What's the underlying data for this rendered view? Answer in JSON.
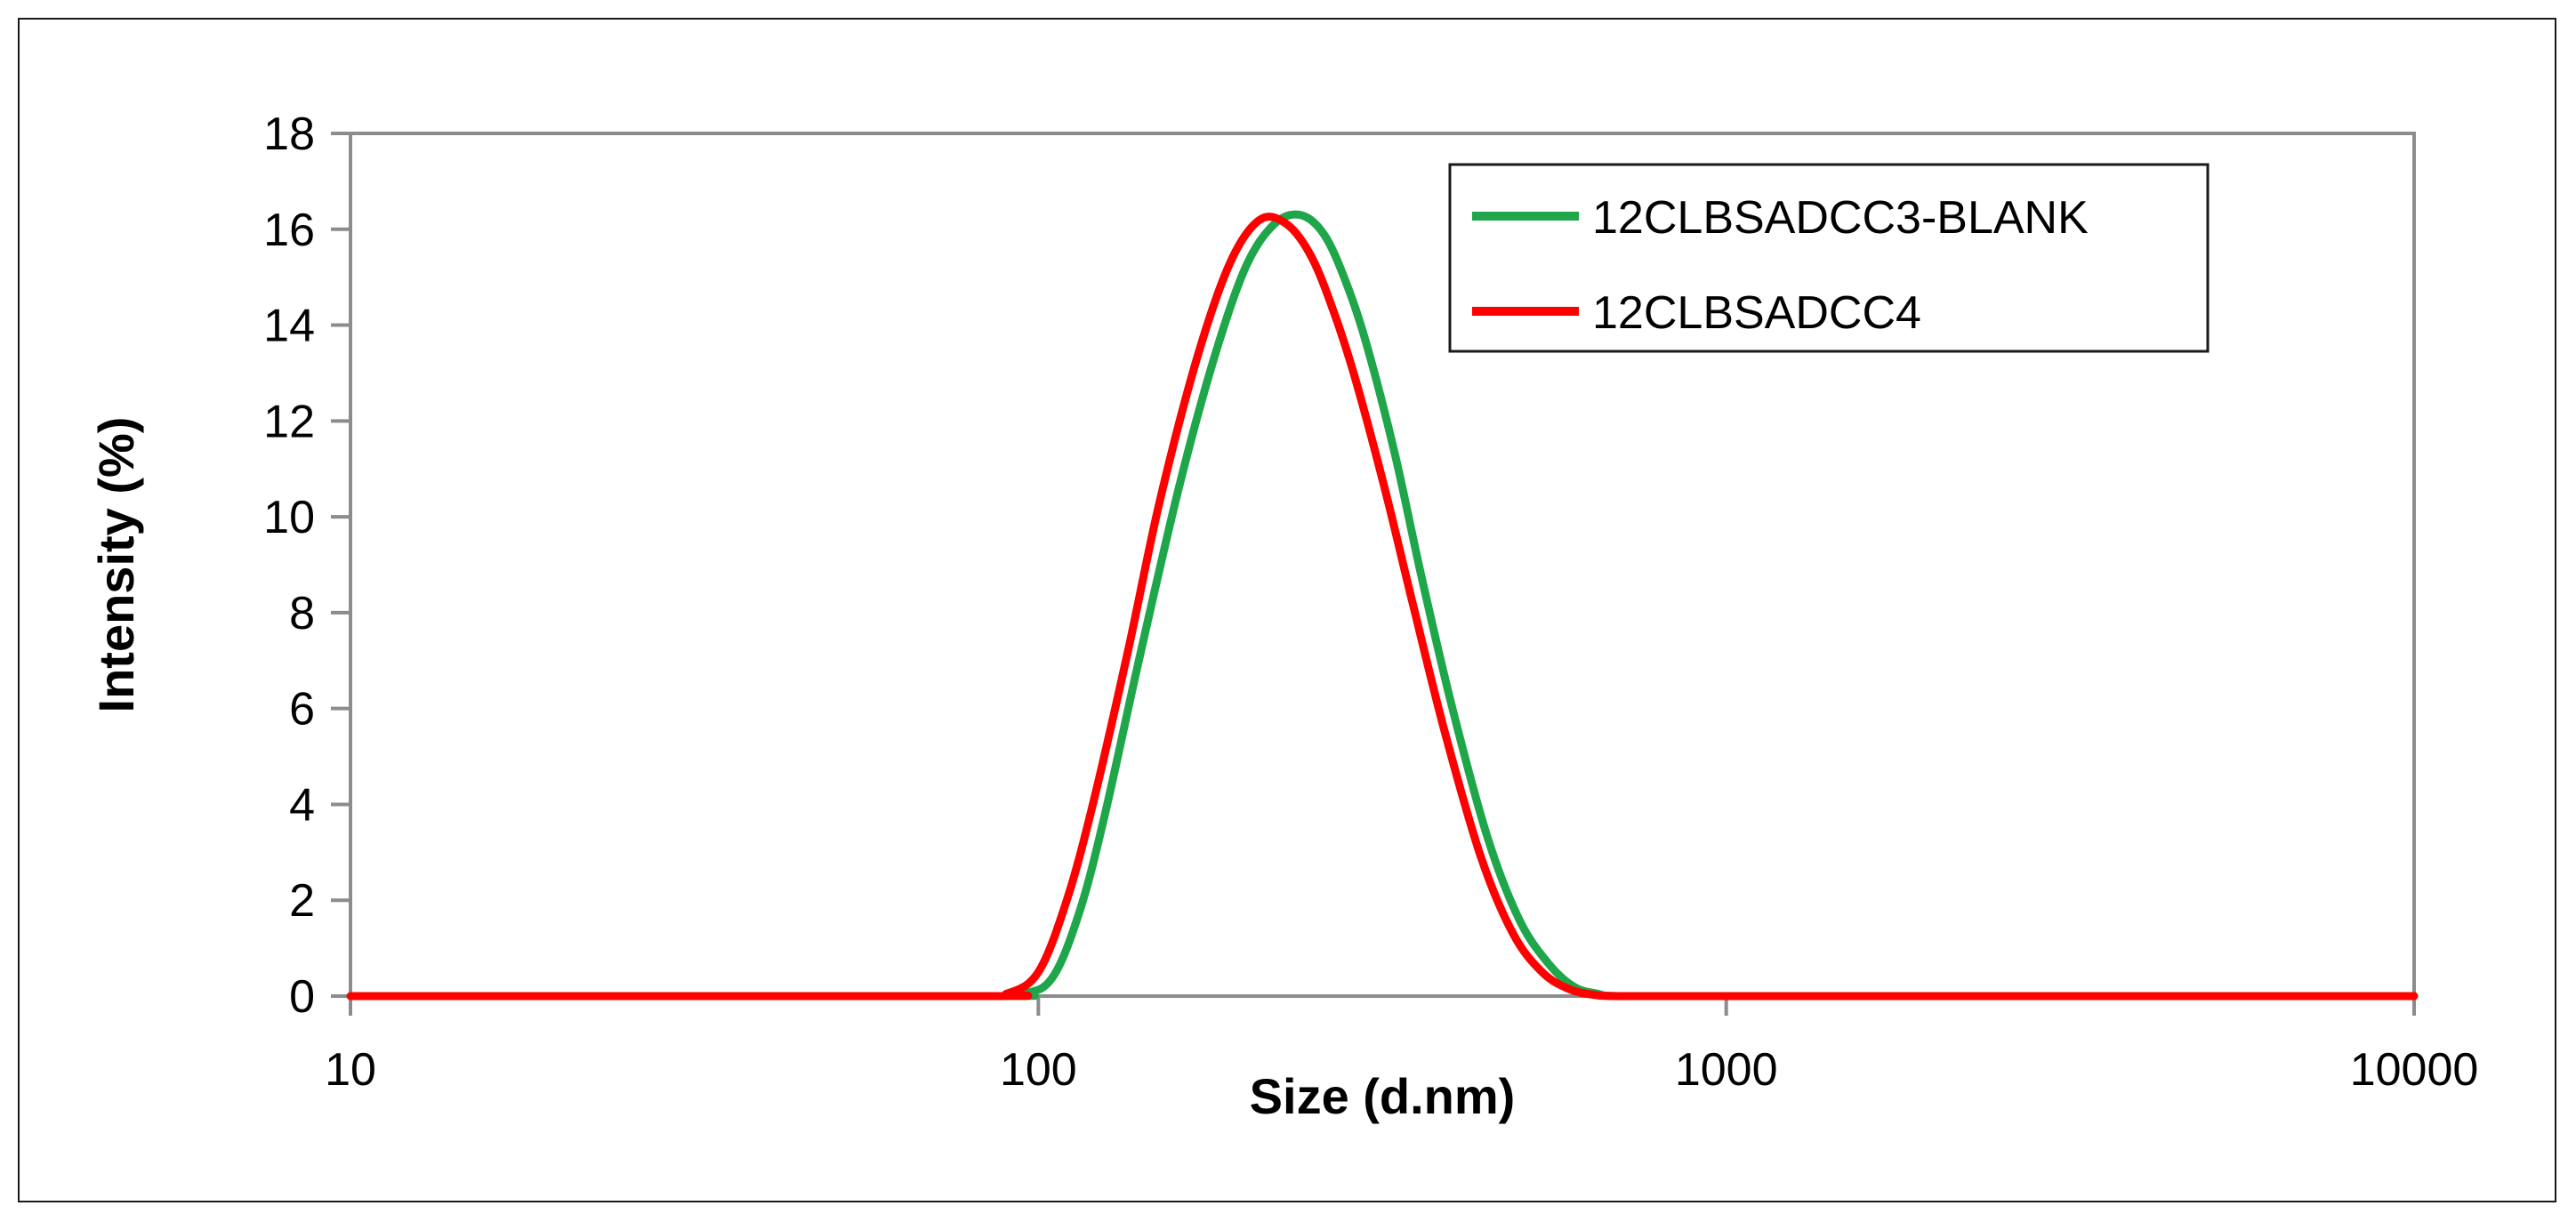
{
  "chart_data": {
    "type": "line",
    "xlabel": "Size (d.nm)",
    "ylabel": "Intensity (%)",
    "xscale": "log",
    "xlim": [
      10,
      10000
    ],
    "ylim": [
      0,
      18
    ],
    "xticks": [
      10,
      100,
      1000,
      10000
    ],
    "yticks": [
      0,
      2,
      4,
      6,
      8,
      10,
      12,
      14,
      16,
      18
    ],
    "grid": false,
    "legend": "top-right",
    "series": [
      {
        "name": "12CLBSADCC3-BLANK",
        "color": "#1fa64a",
        "x": [
          10,
          80,
          95,
          105,
          115,
          125,
          140,
          160,
          180,
          200,
          220,
          240,
          260,
          280,
          300,
          330,
          360,
          400,
          450,
          500,
          550,
          600,
          650,
          700,
          1000,
          10000
        ],
        "y": [
          0,
          0,
          0.05,
          0.4,
          1.8,
          3.8,
          7.0,
          10.6,
          13.3,
          15.2,
          16.1,
          16.3,
          15.9,
          14.9,
          13.6,
          11.3,
          8.8,
          6.0,
          3.3,
          1.6,
          0.7,
          0.2,
          0.05,
          0,
          0,
          0
        ]
      },
      {
        "name": "12CLBSADCC4",
        "color": "#ff0000",
        "x": [
          10,
          80,
          90,
          100,
          110,
          120,
          135,
          150,
          170,
          190,
          210,
          230,
          250,
          270,
          290,
          320,
          350,
          390,
          440,
          490,
          540,
          590,
          640,
          700,
          1000,
          10000
        ],
        "y": [
          0,
          0,
          0.05,
          0.5,
          2.0,
          4.0,
          7.2,
          10.3,
          13.3,
          15.3,
          16.2,
          16.1,
          15.4,
          14.2,
          12.8,
          10.5,
          8.2,
          5.5,
          2.9,
          1.3,
          0.5,
          0.15,
          0.03,
          0,
          0,
          0
        ]
      }
    ]
  }
}
